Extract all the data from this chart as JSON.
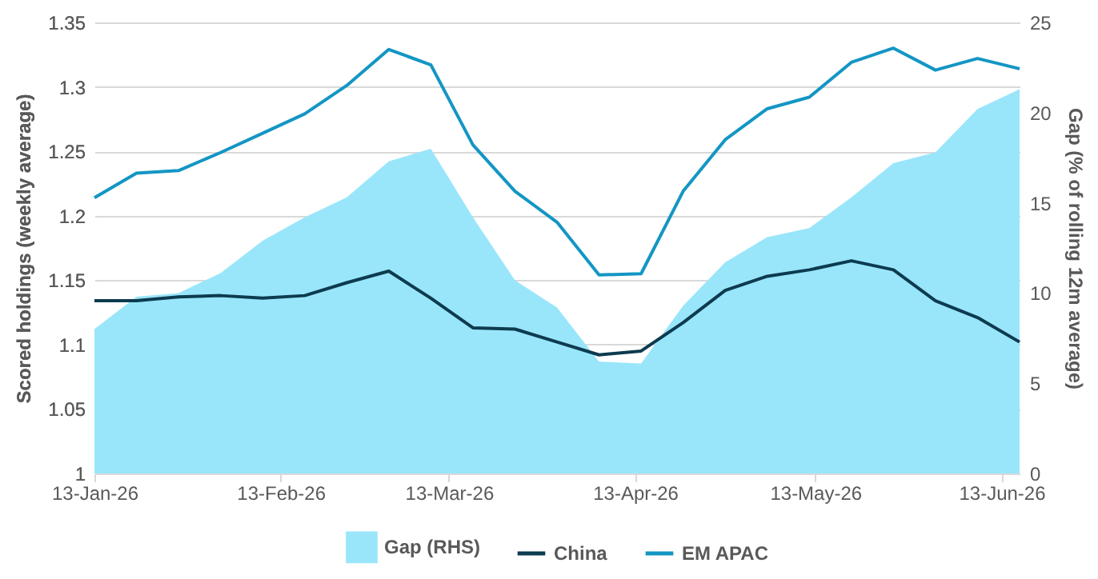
{
  "chart_data": {
    "type": "line",
    "xlabel": null,
    "ylabel": "Scored holdings (weekly average)",
    "y2label": "Gap (% of rolling 12m average)",
    "x": [
      "2026-01-13",
      "2026-01-20",
      "2026-01-27",
      "2026-02-03",
      "2026-02-10",
      "2026-02-17",
      "2026-02-24",
      "2026-03-03",
      "2026-03-10",
      "2026-03-17",
      "2026-03-24",
      "2026-03-31",
      "2026-04-07",
      "2026-04-14",
      "2026-04-21",
      "2026-04-28",
      "2026-05-05",
      "2026-05-12",
      "2026-05-19",
      "2026-05-26",
      "2026-06-02",
      "2026-06-09",
      "2026-06-16"
    ],
    "series": [
      {
        "name": "Gap (RHS)",
        "type": "area",
        "axis": "y2",
        "color": "#99e6fb",
        "values": [
          8.0,
          9.8,
          10.0,
          11.1,
          12.9,
          14.2,
          15.3,
          17.3,
          18.0,
          14.2,
          10.7,
          9.2,
          6.2,
          6.1,
          9.3,
          11.7,
          13.1,
          13.6,
          15.3,
          17.2,
          17.8,
          20.2,
          21.3
        ]
      },
      {
        "name": "China",
        "color": "#0d3b4f",
        "values": [
          1.134,
          1.134,
          1.137,
          1.138,
          1.136,
          1.138,
          1.148,
          1.157,
          1.136,
          1.113,
          1.112,
          1.102,
          1.092,
          1.095,
          1.117,
          1.142,
          1.153,
          1.158,
          1.165,
          1.158,
          1.134,
          1.121,
          1.102
        ]
      },
      {
        "name": "EM APAC",
        "color": "#1396c4",
        "values": [
          1.214,
          1.233,
          1.235,
          1.249,
          1.264,
          1.279,
          1.301,
          1.329,
          1.317,
          1.255,
          1.219,
          1.195,
          1.154,
          1.155,
          1.219,
          1.259,
          1.283,
          1.292,
          1.319,
          1.33,
          1.313,
          1.322,
          1.314
        ]
      }
    ],
    "xlim": [
      "2026-01-13",
      "2026-06-16"
    ],
    "xticks": [
      {
        "value": "2026-01-13",
        "label": "13-Jan-26"
      },
      {
        "value": "2026-02-13",
        "label": "13-Feb-26"
      },
      {
        "value": "2026-03-13",
        "label": "13-Mar-26"
      },
      {
        "value": "2026-04-13",
        "label": "13-Apr-26"
      },
      {
        "value": "2026-05-13",
        "label": "13-May-26"
      },
      {
        "value": "2026-06-13",
        "label": "13-Jun-26"
      }
    ],
    "ylim": [
      1,
      1.35
    ],
    "yticks": [
      1,
      1.05,
      1.1,
      1.15,
      1.2,
      1.25,
      1.3,
      1.35
    ],
    "y2lim": [
      0,
      25
    ],
    "y2ticks": [
      0,
      5,
      10,
      15,
      20,
      25
    ],
    "grid": "y",
    "legend": "bottom",
    "line_style": "solid",
    "marker": "none"
  }
}
